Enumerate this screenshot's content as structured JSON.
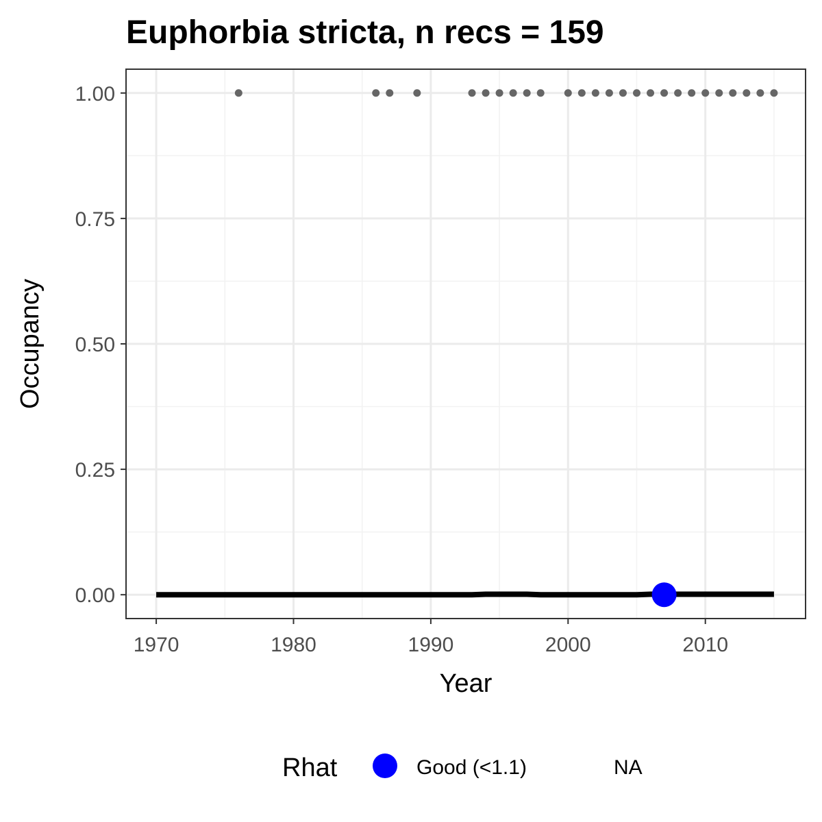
{
  "chart_data": {
    "type": "line",
    "title": "Euphorbia stricta, n recs = 159",
    "xlabel": "Year",
    "ylabel": "Occupancy",
    "xlim": [
      1967.8,
      2017.3
    ],
    "ylim": [
      -0.0475,
      1.0475
    ],
    "x_ticks": [
      1970,
      1980,
      1990,
      2000,
      2010
    ],
    "x_tick_labels": [
      "1970",
      "1980",
      "1990",
      "2000",
      "2010"
    ],
    "x_minor_ticks": [
      1975,
      1985,
      1995,
      2005,
      2015
    ],
    "y_ticks": [
      0,
      0.25,
      0.5,
      0.75,
      1.0
    ],
    "y_tick_labels": [
      "0.00",
      "0.25",
      "0.50",
      "0.75",
      "1.00"
    ],
    "y_minor_ticks": [
      0.125,
      0.375,
      0.625,
      0.875
    ],
    "grid": true,
    "series": [
      {
        "x": [
          1970,
          1971,
          1972,
          1973,
          1974,
          1975,
          1976,
          1977,
          1978,
          1979,
          1980,
          1981,
          1982,
          1983,
          1984,
          1985,
          1986,
          1987,
          1988,
          1989,
          1990,
          1991,
          1992,
          1993,
          1994,
          1995,
          1996,
          1997,
          1998,
          1999,
          2000,
          2001,
          2002,
          2003,
          2004,
          2005,
          2006,
          2007,
          2008,
          2009,
          2010,
          2011,
          2012,
          2013,
          2014,
          2015
        ],
        "values": [
          0,
          0,
          0,
          0,
          0,
          0,
          0,
          0,
          0,
          0,
          0,
          0,
          0,
          0,
          0,
          0,
          0,
          0,
          0,
          0,
          0,
          0,
          0,
          0,
          0.001,
          0.001,
          0.001,
          0.001,
          0,
          0,
          0,
          0,
          0,
          0,
          0,
          0,
          0.001,
          0.001,
          0.001,
          0.001,
          0.001,
          0.001,
          0.001,
          0.001,
          0.001,
          0.001
        ],
        "color": "#000000"
      }
    ],
    "observations": {
      "x": [
        1976,
        1986,
        1987,
        1989,
        1993,
        1994,
        1995,
        1996,
        1997,
        1998,
        2000,
        2001,
        2002,
        2003,
        2004,
        2005,
        2006,
        2007,
        2008,
        2009,
        2010,
        2011,
        2012,
        2013,
        2014,
        2015
      ],
      "y": 1.0,
      "color": "#666666"
    },
    "rhat_points": [
      {
        "x": 2007,
        "y": 0.0,
        "category": "Good (<1.1)"
      }
    ],
    "legend": {
      "title": "Rhat",
      "position": "bottom",
      "items": [
        {
          "label": "Good (<1.1)",
          "color": "#0000ff"
        },
        {
          "label": "NA",
          "color": null
        }
      ]
    }
  }
}
